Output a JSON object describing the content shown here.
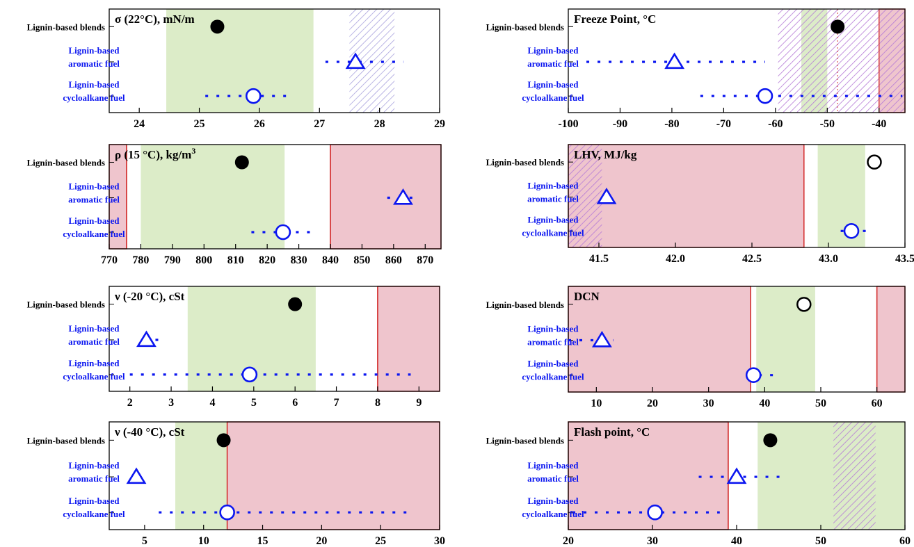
{
  "colors": {
    "green": "#dcecc8",
    "red": "#efc5cd",
    "red_edge": "#d43535",
    "hatch_purple": "#b57ad6",
    "hatch_lavender": "#a9a3de",
    "blue": "#0b16f0",
    "black": "#000000"
  },
  "row_labels": {
    "blends": "Lignin-based blends",
    "aromatic": [
      "Lignin-based",
      "aromatic fuel"
    ],
    "cycloalkane": [
      "Lignin-based",
      "cycloalkane fuel"
    ]
  },
  "chart_data": [
    {
      "type": "scatter",
      "title": "σ (22°C), mN/m",
      "xlim": [
        23.5,
        29
      ],
      "xticks": [
        24,
        25,
        26,
        27,
        28,
        29
      ],
      "grid": false,
      "green_band": [
        24.45,
        26.9
      ],
      "red_bands": [],
      "hatch_bands": [
        {
          "range": [
            27.5,
            28.25
          ],
          "color": "lavender"
        }
      ],
      "red_lines": [],
      "points": {
        "blends": {
          "x": 25.3,
          "marker": "filled-circle"
        },
        "aromatic": {
          "x": 27.6,
          "marker": "triangle",
          "range": [
            27.1,
            28.4
          ]
        },
        "cycloalkane": {
          "x": 25.9,
          "marker": "circle",
          "range": [
            25.1,
            26.5
          ]
        }
      }
    },
    {
      "type": "scatter",
      "title": "Freeze Point, °C",
      "xlim": [
        -100,
        -35
      ],
      "xticks": [
        -100,
        -90,
        -80,
        -70,
        -60,
        -50,
        -40
      ],
      "grid": false,
      "green_band": [
        -55,
        -50
      ],
      "red_bands": [
        [
          -40,
          -35
        ]
      ],
      "hatch_bands": [
        {
          "range": [
            -59.5,
            -40
          ],
          "color": "purple"
        },
        {
          "range": [
            -40,
            -35
          ],
          "color": "purple"
        }
      ],
      "red_lines": [],
      "dotted_line": -48,
      "points": {
        "blends": {
          "x": -48,
          "marker": "filled-circle"
        },
        "aromatic": {
          "x": -79.5,
          "marker": "triangle",
          "range": [
            -96.5,
            -62
          ]
        },
        "cycloalkane": {
          "x": -62,
          "marker": "circle",
          "range": [
            -74.5,
            -35.5
          ]
        }
      }
    },
    {
      "type": "scatter",
      "title": "ρ (15 °C), kg/m",
      "title_sup": "3",
      "xlim": [
        770,
        875
      ],
      "xticks": [
        770,
        780,
        790,
        800,
        810,
        820,
        830,
        840,
        850,
        860,
        870
      ],
      "grid": false,
      "green_band": [
        780,
        825.5
      ],
      "red_bands": [
        [
          770,
          775.5
        ],
        [
          840,
          875
        ]
      ],
      "hatch_bands": [],
      "red_lines": [
        775.5,
        840
      ],
      "points": {
        "blends": {
          "x": 812,
          "marker": "filled-circle"
        },
        "aromatic": {
          "x": 863,
          "marker": "triangle",
          "range": [
            858,
            868
          ]
        },
        "cycloalkane": {
          "x": 825,
          "marker": "circle",
          "range": [
            815,
            835
          ]
        }
      }
    },
    {
      "type": "scatter",
      "title": "LHV, MJ/kg",
      "xlim": [
        41.3,
        43.5
      ],
      "xticks": [
        41.5,
        42.0,
        42.5,
        43.0,
        43.5
      ],
      "xtick_labels": [
        "41.5",
        "42.0",
        "42.5",
        "43.0",
        "43.5"
      ],
      "grid": false,
      "green_band": [
        42.93,
        43.24
      ],
      "red_bands": [
        [
          41.3,
          42.84
        ]
      ],
      "hatch_bands": [
        {
          "range": [
            41.3,
            41.52
          ],
          "color": "purple"
        }
      ],
      "red_lines": [
        42.84
      ],
      "points": {
        "blends": {
          "x": 43.3,
          "marker": "open-circle-black"
        },
        "aromatic": {
          "x": 41.55,
          "marker": "triangle"
        },
        "cycloalkane": {
          "x": 43.15,
          "marker": "circle",
          "range": [
            43.08,
            43.26
          ]
        }
      }
    },
    {
      "type": "scatter",
      "title": "ν (-20 °C), cSt",
      "xlim": [
        1.5,
        9.5
      ],
      "xticks": [
        2,
        3,
        4,
        5,
        6,
        7,
        8,
        9
      ],
      "grid": false,
      "green_band": [
        3.4,
        6.5
      ],
      "red_bands": [
        [
          8.0,
          9.5
        ]
      ],
      "hatch_bands": [],
      "red_lines": [
        8.0
      ],
      "points": {
        "blends": {
          "x": 6.0,
          "marker": "filled-circle"
        },
        "aromatic": {
          "x": 2.4,
          "marker": "triangle",
          "range": [
            2.35,
            2.75
          ]
        },
        "cycloalkane": {
          "x": 4.9,
          "marker": "circle",
          "range": [
            2.0,
            8.8
          ]
        }
      }
    },
    {
      "type": "scatter",
      "title": "DCN",
      "title_color": "#1c3553",
      "xlim": [
        5,
        65
      ],
      "xticks": [
        10,
        20,
        30,
        40,
        50,
        60
      ],
      "grid": false,
      "green_band": [
        38.5,
        49
      ],
      "red_bands": [
        [
          5,
          37.5
        ],
        [
          60,
          65
        ]
      ],
      "hatch_bands": [],
      "red_lines": [
        37.5,
        60
      ],
      "points": {
        "blends": {
          "x": 47,
          "marker": "open-circle-black"
        },
        "aromatic": {
          "x": 11,
          "marker": "triangle",
          "range": [
            5,
            13
          ]
        },
        "cycloalkane": {
          "x": 38,
          "marker": "circle",
          "range": [
            37,
            42
          ]
        }
      }
    },
    {
      "type": "scatter",
      "title": "ν (-40 °C), cSt",
      "xlim": [
        2,
        30
      ],
      "xticks": [
        5,
        10,
        15,
        20,
        25,
        30
      ],
      "grid": false,
      "green_band": [
        7.6,
        12
      ],
      "red_bands": [
        [
          12,
          30
        ]
      ],
      "hatch_bands": [],
      "red_lines": [
        12
      ],
      "points": {
        "blends": {
          "x": 11.7,
          "marker": "filled-circle"
        },
        "aromatic": {
          "x": 4.3,
          "marker": "triangle",
          "range": [
            4.3,
            5.2
          ]
        },
        "cycloalkane": {
          "x": 12,
          "marker": "circle",
          "range": [
            6.2,
            27.5
          ]
        }
      }
    },
    {
      "type": "scatter",
      "title": "Flash point, °C",
      "xlim": [
        20,
        60
      ],
      "xticks": [
        20,
        30,
        40,
        50,
        60
      ],
      "grid": false,
      "green_band": [
        42.5,
        60
      ],
      "red_bands": [
        [
          20,
          39
        ]
      ],
      "hatch_bands": [
        {
          "range": [
            51.5,
            56.5
          ],
          "color": "purple"
        }
      ],
      "red_lines": [
        39
      ],
      "points": {
        "blends": {
          "x": 44,
          "marker": "filled-circle"
        },
        "aromatic": {
          "x": 40,
          "marker": "triangle",
          "range": [
            35.5,
            46
          ]
        },
        "cycloalkane": {
          "x": 30.3,
          "marker": "circle",
          "range": [
            20.5,
            38
          ]
        }
      }
    }
  ]
}
